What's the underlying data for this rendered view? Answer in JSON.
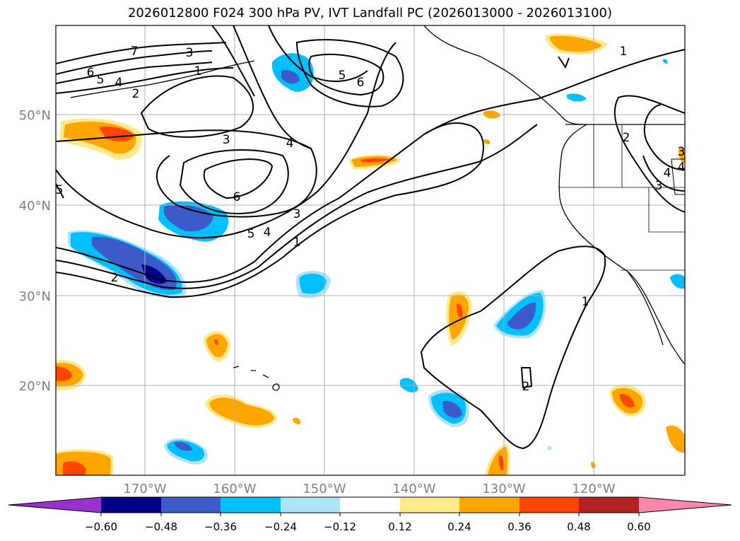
{
  "title": "2026012800 F024 300 hPa PV, IVT Landfall PC (2026013000 - 2026013100)",
  "colors": {
    "grid": "#b0b0b0",
    "axis_label": "#808080",
    "contour": "#000000",
    "coast": "#000000"
  },
  "map": {
    "lon_labels": [
      "170°W",
      "160°W",
      "150°W",
      "140°W",
      "130°W",
      "120°W"
    ],
    "lat_labels": [
      "50°N",
      "40°N",
      "30°N",
      "20°N"
    ],
    "contour_labels": [
      "7",
      "6",
      "5",
      "4",
      "3",
      "2",
      "1",
      "5",
      "6",
      "3",
      "4",
      "6",
      "3",
      "4",
      "5",
      "1",
      "2",
      "5",
      "4",
      "3",
      "1",
      "2",
      "1",
      "2",
      "4",
      "3"
    ]
  },
  "colorbar": {
    "ticks": [
      "−0.60",
      "−0.48",
      "−0.36",
      "−0.24",
      "−0.12",
      "0.12",
      "0.24",
      "0.36",
      "0.48",
      "0.60"
    ],
    "colors": [
      "#9932cc",
      "#00008b",
      "#3c5ac8",
      "#00bfff",
      "#afe3fa",
      "#ffffff",
      "#ffe98c",
      "#ffa500",
      "#ff4500",
      "#b22222",
      "#ff88aa"
    ]
  }
}
